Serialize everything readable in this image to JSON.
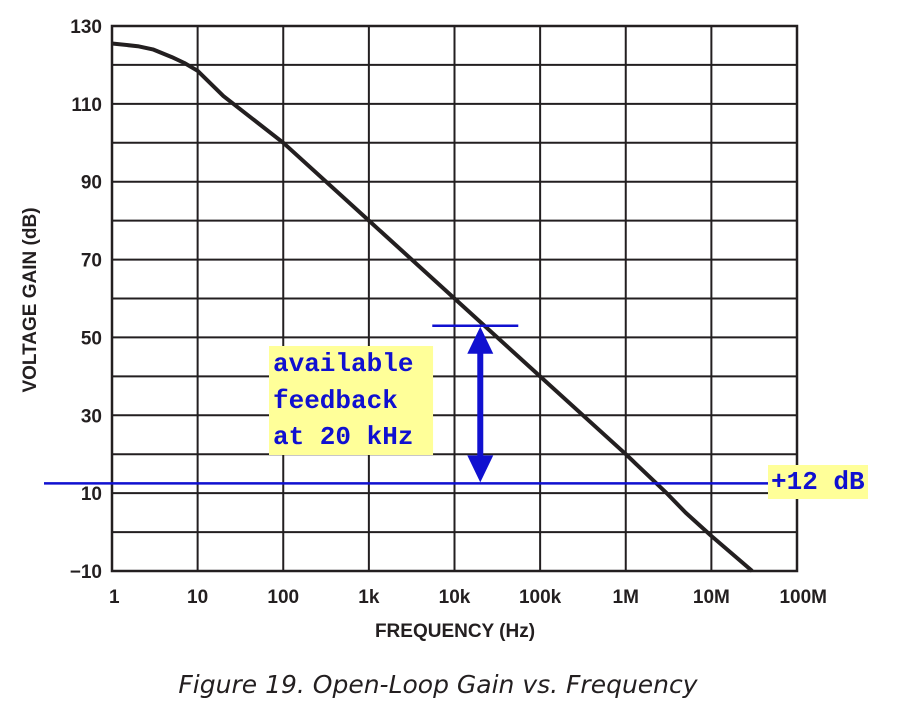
{
  "chart_data": {
    "type": "line",
    "title": "",
    "xlabel": "FREQUENCY (Hz)",
    "ylabel": "VOLTAGE GAIN (dB)",
    "x_scale": "log",
    "xlim": [
      1,
      100000000
    ],
    "ylim": [
      -10,
      130
    ],
    "x_ticks": [
      1,
      10,
      100,
      1000,
      10000,
      100000,
      1000000,
      10000000,
      100000000
    ],
    "x_tick_labels": [
      "1",
      "10",
      "100",
      "1k",
      "10k",
      "100k",
      "1M",
      "10M",
      "100M"
    ],
    "y_ticks": [
      -10,
      10,
      30,
      50,
      70,
      90,
      110,
      130
    ],
    "y_tick_labels": [
      "−10",
      "10",
      "30",
      "50",
      "70",
      "90",
      "110",
      "130"
    ],
    "grid": true,
    "series": [
      {
        "x": [
          1,
          2,
          3,
          5,
          7,
          10,
          20,
          100,
          1000,
          10000,
          100000,
          1000000,
          3000000,
          5000000,
          10000000,
          30000000
        ],
        "y": [
          125.5,
          124.8,
          124,
          122,
          120.5,
          118.5,
          112,
          100,
          80,
          60,
          40,
          20,
          10,
          5,
          -1,
          -10
        ]
      }
    ],
    "annotations": {
      "threshold_label": "+12 dB",
      "threshold_value": 12.5,
      "feedback_lines": [
        "available",
        "feedback",
        "at 20 kHz"
      ],
      "feedback_frequency": 20000,
      "feedback_top": 53,
      "feedback_bottom": 12.5
    },
    "colors": {
      "curve": "#231f20",
      "grid": "#231f20",
      "annotation": "#1010d0",
      "highlight": "#ffff99"
    }
  },
  "caption": "Figure 19. Open-Loop Gain vs. Frequency"
}
